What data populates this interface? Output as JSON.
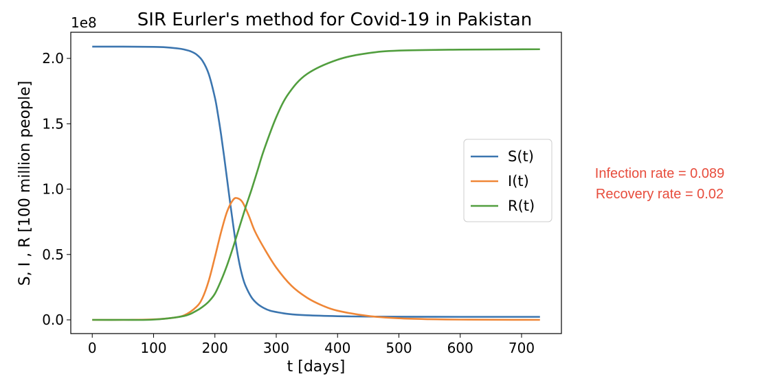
{
  "chart_data": {
    "type": "line",
    "title": "SIR Eurler's method for Covid-19 in Pakistan",
    "xlabel": "t [days]",
    "ylabel": "S,  I , R [100 million people]",
    "y_offset_label": "1e8",
    "xlim": [
      -35,
      765
    ],
    "ylim": [
      -0.105,
      2.2
    ],
    "x_ticks": [
      0,
      100,
      200,
      300,
      400,
      500,
      600,
      700
    ],
    "x_tick_labels": [
      "0",
      "100",
      "200",
      "300",
      "400",
      "500",
      "600",
      "700"
    ],
    "y_ticks": [
      0.0,
      0.5,
      1.0,
      1.5,
      2.0
    ],
    "y_tick_labels": [
      "0.0",
      "0.5",
      "1.0",
      "1.5",
      "2.0"
    ],
    "legend_position": "center-right",
    "series": [
      {
        "name": "S(t)",
        "color": "#3b75af",
        "x": [
          0,
          50,
          100,
          120,
          140,
          150,
          160,
          170,
          180,
          190,
          200,
          205,
          210,
          215,
          220,
          225,
          230,
          235,
          240,
          245,
          250,
          260,
          270,
          280,
          290,
          300,
          320,
          350,
          400,
          450,
          500,
          600,
          730
        ],
        "y": [
          2.09,
          2.09,
          2.088,
          2.085,
          2.076,
          2.068,
          2.055,
          2.03,
          1.98,
          1.88,
          1.7,
          1.57,
          1.42,
          1.25,
          1.07,
          0.89,
          0.72,
          0.56,
          0.43,
          0.33,
          0.26,
          0.17,
          0.12,
          0.09,
          0.07,
          0.06,
          0.045,
          0.035,
          0.028,
          0.025,
          0.024,
          0.023,
          0.023
        ]
      },
      {
        "name": "I(t)",
        "color": "#ef8636",
        "x": [
          0,
          50,
          100,
          130,
          150,
          170,
          180,
          190,
          200,
          210,
          220,
          230,
          237,
          245,
          255,
          265,
          280,
          300,
          325,
          350,
          375,
          400,
          450,
          500,
          550,
          600,
          650,
          730
        ],
        "y": [
          0.0,
          0.0,
          0.004,
          0.015,
          0.035,
          0.1,
          0.17,
          0.3,
          0.48,
          0.67,
          0.83,
          0.92,
          0.93,
          0.9,
          0.8,
          0.68,
          0.55,
          0.4,
          0.26,
          0.17,
          0.11,
          0.07,
          0.03,
          0.012,
          0.005,
          0.002,
          0.001,
          0.0
        ]
      },
      {
        "name": "R(t)",
        "color": "#519e3e",
        "x": [
          0,
          50,
          100,
          150,
          170,
          180,
          190,
          200,
          210,
          220,
          230,
          240,
          250,
          260,
          270,
          280,
          300,
          320,
          350,
          400,
          450,
          500,
          600,
          730
        ],
        "y": [
          0.0,
          0.0,
          0.002,
          0.03,
          0.07,
          0.1,
          0.14,
          0.2,
          0.3,
          0.42,
          0.56,
          0.71,
          0.86,
          1.0,
          1.15,
          1.3,
          1.55,
          1.73,
          1.88,
          1.99,
          2.04,
          2.06,
          2.067,
          2.07
        ]
      }
    ]
  },
  "annotations": {
    "infection_rate": "Infection rate = 0.089",
    "recovery_rate": "Recovery rate = 0.02"
  }
}
